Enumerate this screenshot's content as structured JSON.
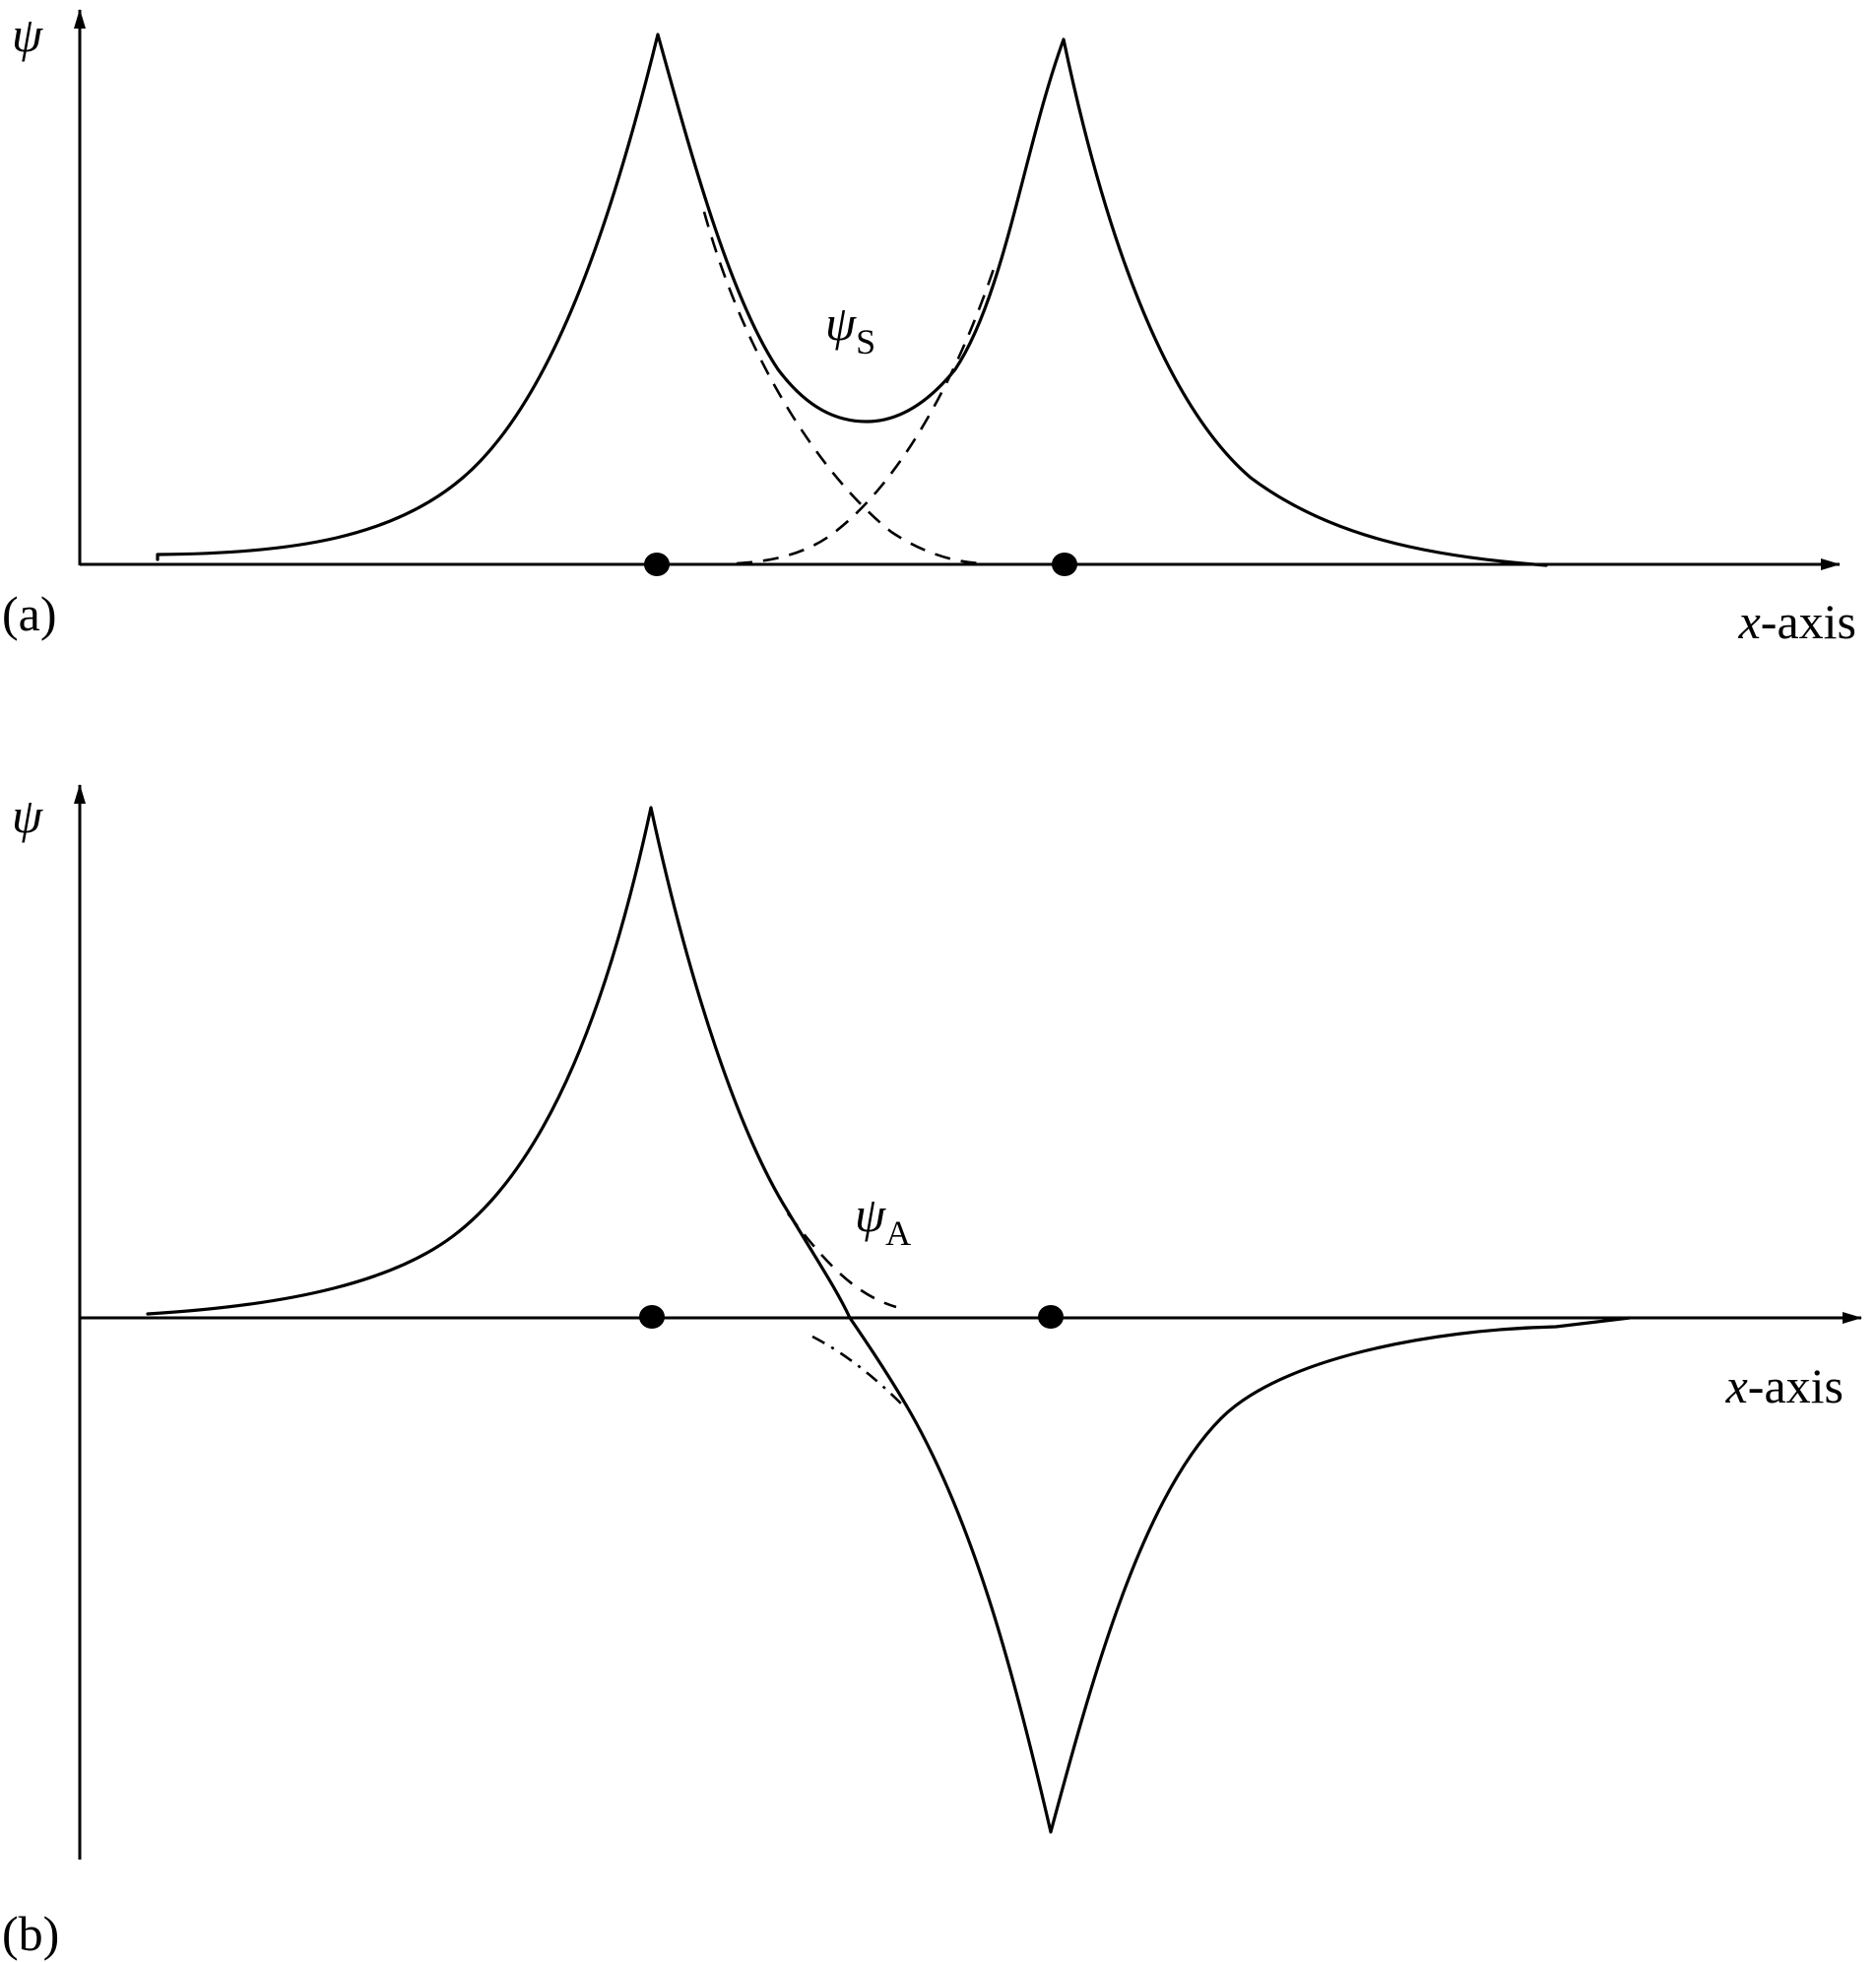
{
  "panel_a": {
    "label": "(a)",
    "y_axis_label": "ψ",
    "x_axis_var": "x",
    "x_axis_suffix": "-axis",
    "curve_symbol": "ψ",
    "curve_subscript": "S"
  },
  "panel_b": {
    "label": "(b)",
    "y_axis_label": "ψ",
    "x_axis_var": "x",
    "x_axis_suffix": "-axis",
    "curve_symbol": "ψ",
    "curve_subscript": "A"
  },
  "colors": {
    "ink": "#000000",
    "background": "#ffffff"
  }
}
